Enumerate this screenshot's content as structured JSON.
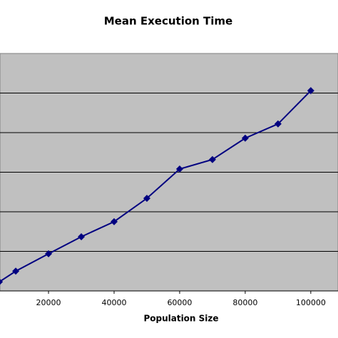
{
  "chart_data": {
    "type": "line",
    "title": "Mean Execution Time",
    "x_label": "Population Size",
    "x": [
      5000,
      10000,
      20000,
      30000,
      40000,
      50000,
      60000,
      70000,
      80000,
      90000,
      100000
    ],
    "series": [
      {
        "color": "#000080",
        "values": [
          0.23,
          0.5,
          0.94,
          1.37,
          1.75,
          2.34,
          3.08,
          3.32,
          3.86,
          4.22,
          5.06
        ]
      }
    ],
    "xlim": [
      5200,
      108300
    ],
    "xticks": [
      20000,
      40000,
      60000,
      80000,
      100000
    ],
    "ylim": [
      0,
      6
    ],
    "yticks": [
      1,
      2,
      3,
      4,
      5
    ],
    "grid": true,
    "plot_background": "#c0c0c0"
  }
}
